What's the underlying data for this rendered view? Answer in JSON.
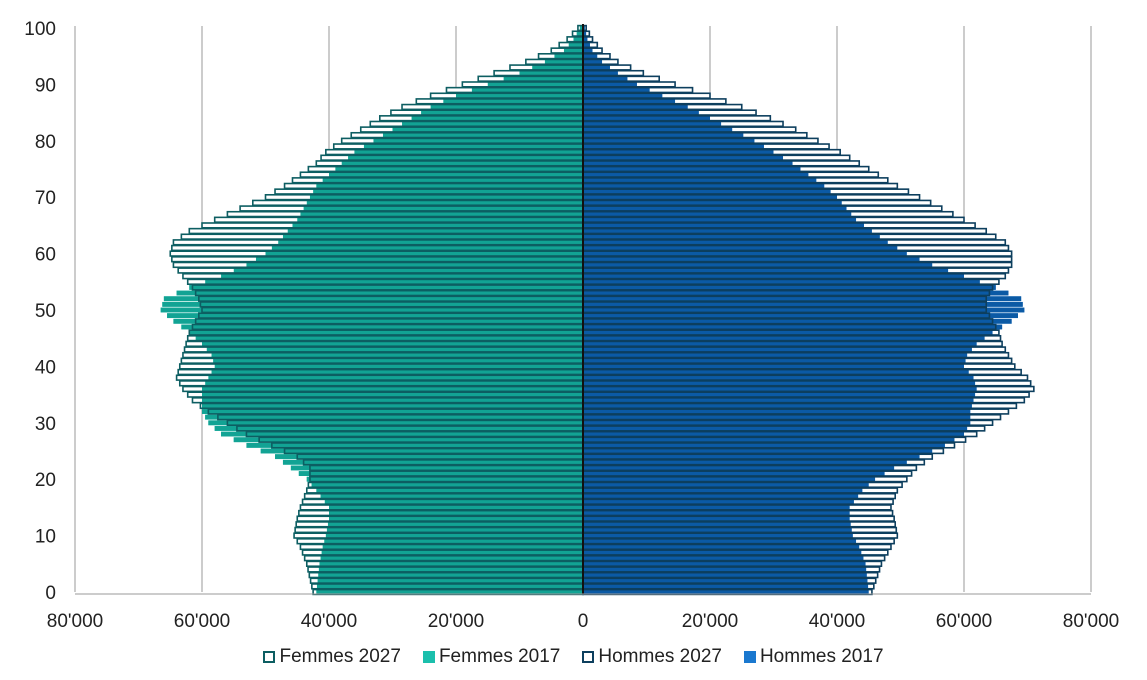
{
  "chart_data": {
    "type": "bar",
    "orientation": "horizontal",
    "subtype": "population-pyramid",
    "title": "",
    "xlabel": "",
    "ylabel": "",
    "xlim": [
      -80000,
      80000
    ],
    "ylim": [
      0,
      100
    ],
    "x_ticks": [
      -80000,
      -60000,
      -40000,
      -20000,
      0,
      20000,
      40000,
      60000,
      80000
    ],
    "x_tick_labels": [
      "80'000",
      "60'000",
      "40'000",
      "20'000",
      "0",
      "20'000",
      "40'000",
      "60'000",
      "80'000"
    ],
    "y_ticks": [
      0,
      10,
      20,
      30,
      40,
      50,
      60,
      70,
      80,
      90,
      100
    ],
    "y_tick_labels": [
      "0",
      "10",
      "20",
      "30",
      "40",
      "50",
      "60",
      "70",
      "80",
      "90",
      "100"
    ],
    "grid": "vertical",
    "legend_position": "bottom",
    "colors": {
      "femmes_2017": "#12a394",
      "femmes_2027": "#0d5e62",
      "hommes_2017": "#0b5aa5",
      "hommes_2027": "#0d3f5e",
      "accent_femmes": "#1bbfac",
      "accent_hommes": "#1a78cf"
    },
    "legend": [
      {
        "label": "Femmes 2027",
        "style": "outline",
        "color": "#0d5e62"
      },
      {
        "label": "Femmes 2017",
        "style": "filled",
        "color": "#1bbfac"
      },
      {
        "label": "Hommes 2027",
        "style": "outline",
        "color": "#0d3f5e"
      },
      {
        "label": "Hommes 2017",
        "style": "filled",
        "color": "#1a78cf"
      }
    ],
    "age_points": [
      0,
      5,
      8,
      10,
      13,
      15,
      18,
      20,
      22,
      24,
      26,
      28,
      30,
      32,
      34,
      36,
      38,
      40,
      42,
      44,
      46,
      48,
      50,
      52,
      54,
      56,
      58,
      60,
      62,
      64,
      66,
      68,
      70,
      72,
      74,
      76,
      78,
      80,
      82,
      84,
      86,
      88,
      90,
      92,
      94,
      96,
      98,
      100
    ],
    "series": [
      {
        "name": "Femmes 2017",
        "side": "left",
        "values": [
          42000,
          41500,
          41000,
          40500,
          40000,
          40000,
          42000,
          43500,
          46000,
          48500,
          53000,
          57000,
          59000,
          60000,
          60000,
          60000,
          59000,
          58000,
          58500,
          60000,
          62000,
          64500,
          66500,
          66000,
          62000,
          57000,
          53000,
          50000,
          48000,
          46500,
          45000,
          44000,
          43000,
          42000,
          40000,
          38000,
          36000,
          33000,
          30000,
          27000,
          24000,
          20000,
          15000,
          10000,
          6000,
          3000,
          1500,
          500
        ]
      },
      {
        "name": "Femmes 2027",
        "side": "left",
        "values": [
          42500,
          43500,
          44500,
          45500,
          45000,
          44500,
          43500,
          43000,
          43000,
          45000,
          49000,
          53000,
          56000,
          59000,
          61500,
          63000,
          64000,
          63500,
          63000,
          62500,
          62000,
          61000,
          60000,
          60500,
          61500,
          63000,
          64500,
          65000,
          64500,
          62000,
          58000,
          54000,
          50000,
          47000,
          44500,
          42000,
          40500,
          38000,
          35000,
          32000,
          28500,
          24000,
          19000,
          14000,
          9000,
          5000,
          2500,
          800
        ]
      },
      {
        "name": "Hommes 2017",
        "side": "right",
        "values": [
          45000,
          44500,
          43500,
          42500,
          42000,
          42000,
          44000,
          46000,
          49000,
          53000,
          57000,
          60000,
          61000,
          61000,
          61500,
          62000,
          61500,
          60000,
          60500,
          62000,
          64500,
          67500,
          69500,
          69000,
          65000,
          60000,
          55000,
          51000,
          48000,
          45500,
          43000,
          41500,
          40000,
          38000,
          35500,
          33000,
          30000,
          27000,
          23500,
          20000,
          16500,
          12500,
          8500,
          5500,
          3000,
          1500,
          700,
          300
        ]
      },
      {
        "name": "Hommes 2027",
        "side": "right",
        "values": [
          45500,
          47000,
          48500,
          49500,
          49000,
          48500,
          49500,
          51000,
          52500,
          55000,
          58500,
          62000,
          64500,
          67000,
          69500,
          71000,
          70000,
          68000,
          67000,
          66000,
          65500,
          64500,
          63500,
          63500,
          64500,
          66500,
          67500,
          67500,
          66500,
          63500,
          60000,
          56500,
          53000,
          49500,
          46500,
          43500,
          40500,
          37000,
          33500,
          29500,
          25000,
          20000,
          14500,
          9500,
          5500,
          3000,
          1500,
          500
        ]
      }
    ]
  }
}
